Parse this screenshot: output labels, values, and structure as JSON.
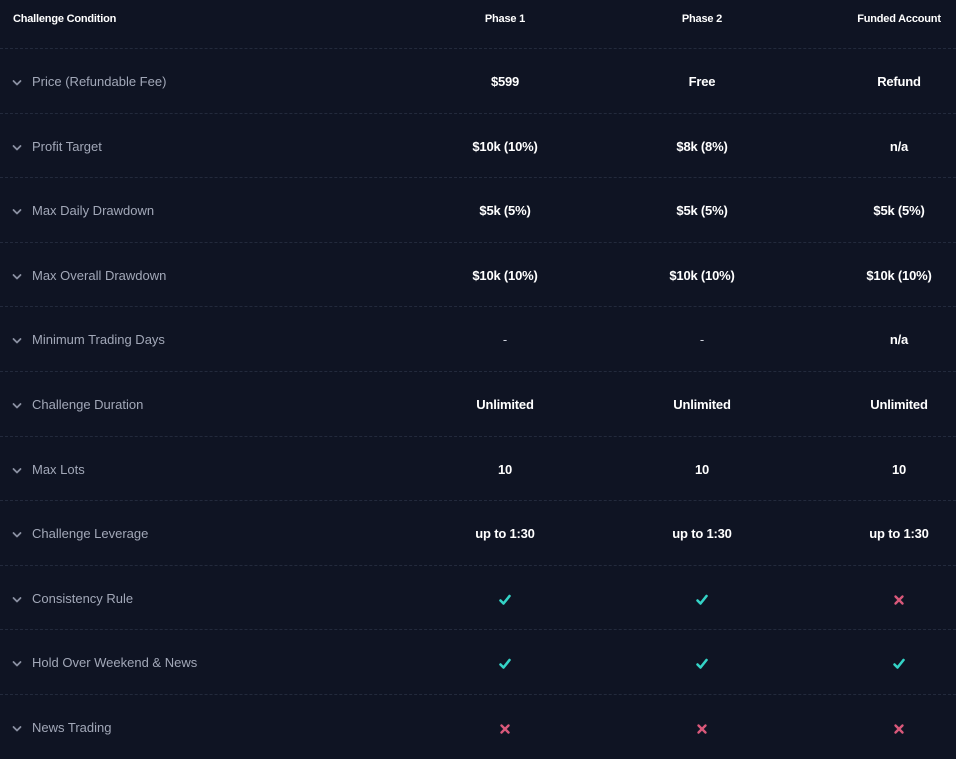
{
  "header": {
    "label": "Challenge Condition",
    "col1": "Phase 1",
    "col2": "Phase 2",
    "col3": "Funded Account"
  },
  "colors": {
    "background": "#0f1423",
    "check": "#34d3c6",
    "cross": "#d9587a",
    "label_text": "#a2a8b8"
  },
  "rows": [
    {
      "label": "Price (Refundable Fee)",
      "c1": "$599",
      "c2": "Free",
      "c3": "Refund"
    },
    {
      "label": "Profit Target",
      "c1": "$10k (10%)",
      "c2": "$8k (8%)",
      "c3": "n/a"
    },
    {
      "label": "Max Daily Drawdown",
      "c1": "$5k (5%)",
      "c2": "$5k (5%)",
      "c3": "$5k (5%)"
    },
    {
      "label": "Max Overall Drawdown",
      "c1": "$10k (10%)",
      "c2": "$10k (10%)",
      "c3": "$10k (10%)"
    },
    {
      "label": "Minimum Trading Days",
      "c1": "-",
      "c2": "-",
      "c3": "n/a"
    },
    {
      "label": "Challenge Duration",
      "c1": "Unlimited",
      "c2": "Unlimited",
      "c3": "Unlimited"
    },
    {
      "label": "Max Lots",
      "c1": "10",
      "c2": "10",
      "c3": "10"
    },
    {
      "label": "Challenge Leverage",
      "c1": "up to 1:30",
      "c2": "up to 1:30",
      "c3": "up to 1:30"
    },
    {
      "label": "Consistency Rule",
      "c1": "check-icon",
      "c2": "check-icon",
      "c3": "cross-icon"
    },
    {
      "label": "Hold Over Weekend & News",
      "c1": "check-icon",
      "c2": "check-icon",
      "c3": "check-icon"
    },
    {
      "label": "News Trading",
      "c1": "cross-icon",
      "c2": "cross-icon",
      "c3": "cross-icon"
    }
  ]
}
